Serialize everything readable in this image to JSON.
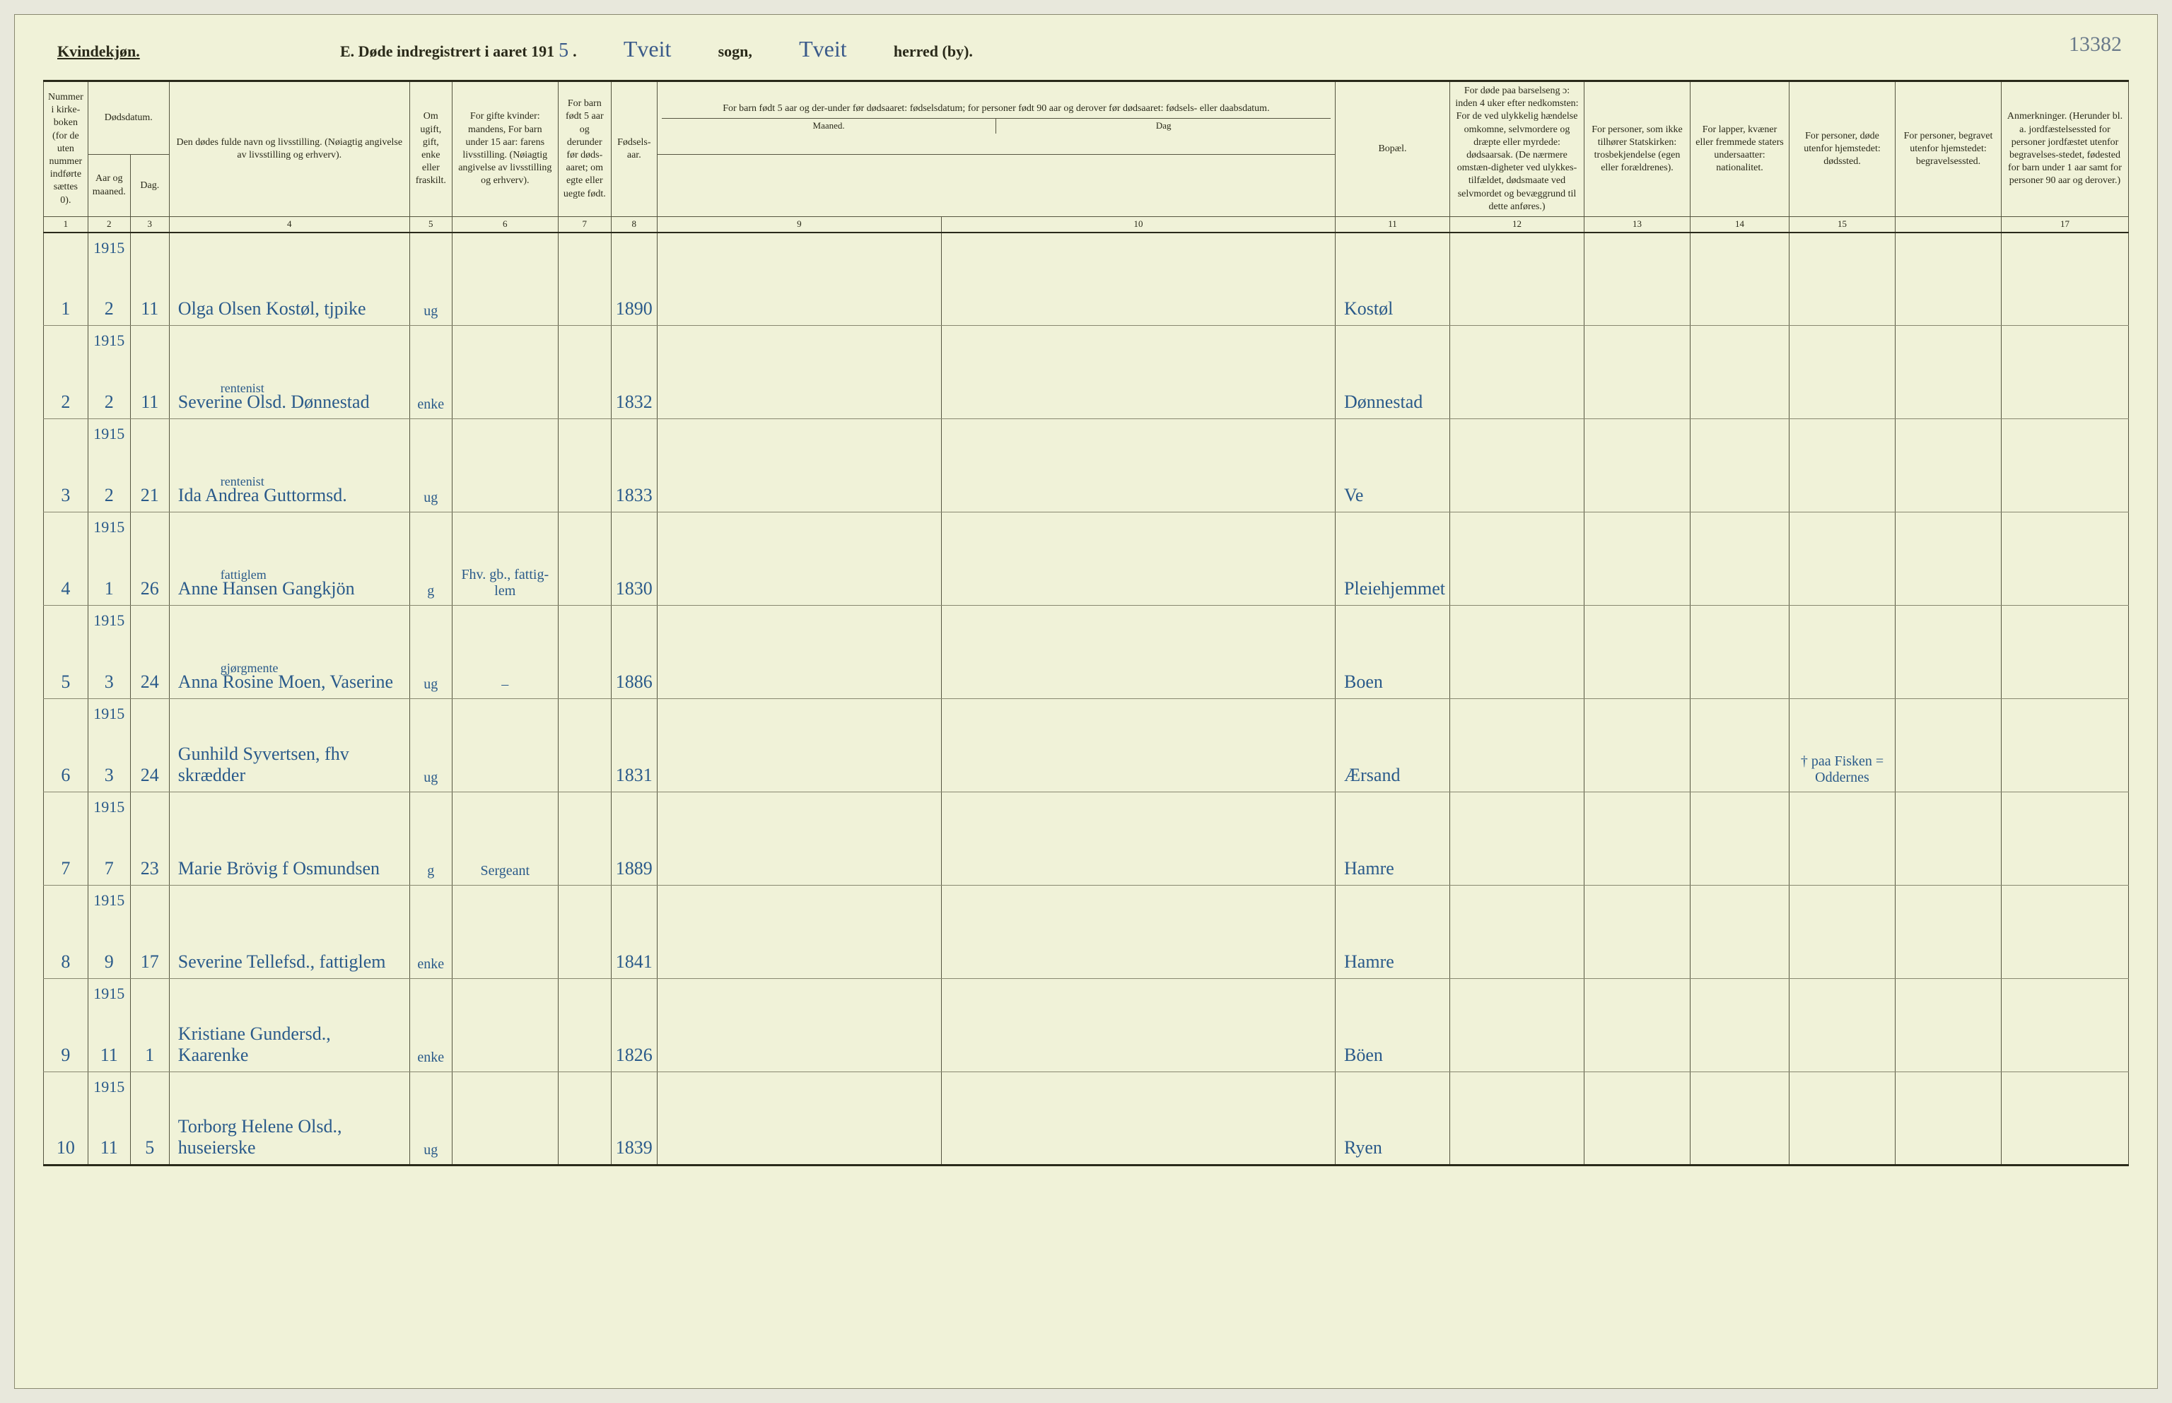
{
  "page_number_annotation": "13382",
  "header": {
    "gender_label": "Kvindekjøn.",
    "title_prefix": "E.   Døde indregistrert i aaret 191",
    "year_suffix": "5",
    "period": ".",
    "sogn_value": "Tveit",
    "sogn_label": "sogn,",
    "herred_value": "Tveit",
    "herred_label": "herred (by)."
  },
  "columns": {
    "c1": "Nummer i kirke-boken (for de uten nummer indførte sættes 0).",
    "c2_group": "Dødsdatum.",
    "c2": "Aar og maaned.",
    "c3": "Dag.",
    "c4": "Den dødes fulde navn og livsstilling. (Nøiagtig angivelse av livsstilling og erhverv).",
    "c5": "Om ugift, gift, enke eller fraskilt.",
    "c6": "For gifte kvinder: mandens, For barn under 15 aar: farens livsstilling. (Nøiagtig angivelse av livsstilling og erhverv).",
    "c7": "For barn født 5 aar og derunder før døds-aaret; om egte eller uegte født.",
    "c8": "Fødsels-aar.",
    "c910_group": "For barn født 5 aar og der-under før dødsaaret: fødselsdatum; for personer født 90 aar og derover før dødsaaret: fødsels- eller daabsdatum.",
    "c9": "Maaned.",
    "c10": "Dag",
    "c11": "Bopæl.",
    "c12": "For døde paa barselseng ɔ: inden 4 uker efter nedkomsten: For de ved ulykkelig hændelse omkomne, selvmordere og dræpte eller myrdede: dødsaarsak. (De nærmere omstæn-digheter ved ulykkes-tilfældet, dødsmaate ved selvmordet og bevæggrund til dette anføres.)",
    "c13": "For personer, som ikke tilhører Statskirken: trosbekjendelse (egen eller forældrenes).",
    "c14": "For lapper, kvæner eller fremmede staters undersaatter: nationalitet.",
    "c15": "For personer, døde utenfor hjemstedet: dødssted.",
    "c16": "For personer, begravet utenfor hjemstedet: begravelsessted.",
    "c17": "Anmerkninger. (Herunder bl. a. jordfæstelsessted for personer jordfæstet utenfor begravelses-stedet, fødested for barn under 1 aar samt for personer 90 aar og derover.)"
  },
  "colnums": [
    "1",
    "2",
    "3",
    "4",
    "5",
    "6",
    "7",
    "8",
    "9",
    "10",
    "11",
    "12",
    "13",
    "14",
    "15",
    "",
    "17"
  ],
  "rows": [
    {
      "n": "1",
      "year": "1915",
      "month": "2",
      "day": "11",
      "name": "Olga Olsen Kostøl, tjpike",
      "super": "",
      "status": "ug",
      "c6": "",
      "c8": "1890",
      "bopel": "Kostøl",
      "c15": ""
    },
    {
      "n": "2",
      "year": "1915",
      "month": "2",
      "day": "11",
      "name": "Severine Olsd. Dønnestad",
      "super": "rentenist",
      "status": "enke",
      "c6": "",
      "c8": "1832",
      "bopel": "Dønnestad",
      "c15": ""
    },
    {
      "n": "3",
      "year": "1915",
      "month": "2",
      "day": "21",
      "name": "Ida Andrea Guttormsd.",
      "super": "rentenist",
      "status": "ug",
      "c6": "",
      "c8": "1833",
      "bopel": "Ve",
      "c15": ""
    },
    {
      "n": "4",
      "year": "1915",
      "month": "1",
      "day": "26",
      "name": "Anne Hansen Gangkjön",
      "super": "fattiglem",
      "status": "g",
      "c6": "Fhv. gb., fattig-lem",
      "c8": "1830",
      "bopel": "Pleiehjemmet",
      "c15": ""
    },
    {
      "n": "5",
      "year": "1915",
      "month": "3",
      "day": "24",
      "name": "Anna Rosine Moen, Vaserine",
      "super": "gjørgmente",
      "status": "ug",
      "c6": "–",
      "c8": "1886",
      "bopel": "Boen",
      "c15": ""
    },
    {
      "n": "6",
      "year": "1915",
      "month": "3",
      "day": "24",
      "name": "Gunhild Syvertsen, fhv skrædder",
      "super": "",
      "status": "ug",
      "c6": "",
      "c8": "1831",
      "bopel": "Ærsand",
      "c15": "† paa Fisken = Oddernes"
    },
    {
      "n": "7",
      "year": "1915",
      "month": "7",
      "day": "23",
      "name": "Marie Brövig f Osmundsen",
      "super": "",
      "status": "g",
      "c6": "Sergeant",
      "c8": "1889",
      "bopel": "Hamre",
      "c15": ""
    },
    {
      "n": "8",
      "year": "1915",
      "month": "9",
      "day": "17",
      "name": "Severine Tellefsd., fattiglem",
      "super": "",
      "status": "enke",
      "c6": "",
      "c8": "1841",
      "bopel": "Hamre",
      "c15": ""
    },
    {
      "n": "9",
      "year": "1915",
      "month": "11",
      "day": "1",
      "name": "Kristiane Gundersd., Kaarenke",
      "super": "",
      "status": "enke",
      "c6": "",
      "c8": "1826",
      "bopel": "Böen",
      "c15": ""
    },
    {
      "n": "10",
      "year": "1915",
      "month": "11",
      "day": "5",
      "name": "Torborg Helene Olsd., huseierske",
      "super": "",
      "status": "ug",
      "c6": "",
      "c8": "1839",
      "bopel": "Ryen",
      "c15": ""
    }
  ]
}
